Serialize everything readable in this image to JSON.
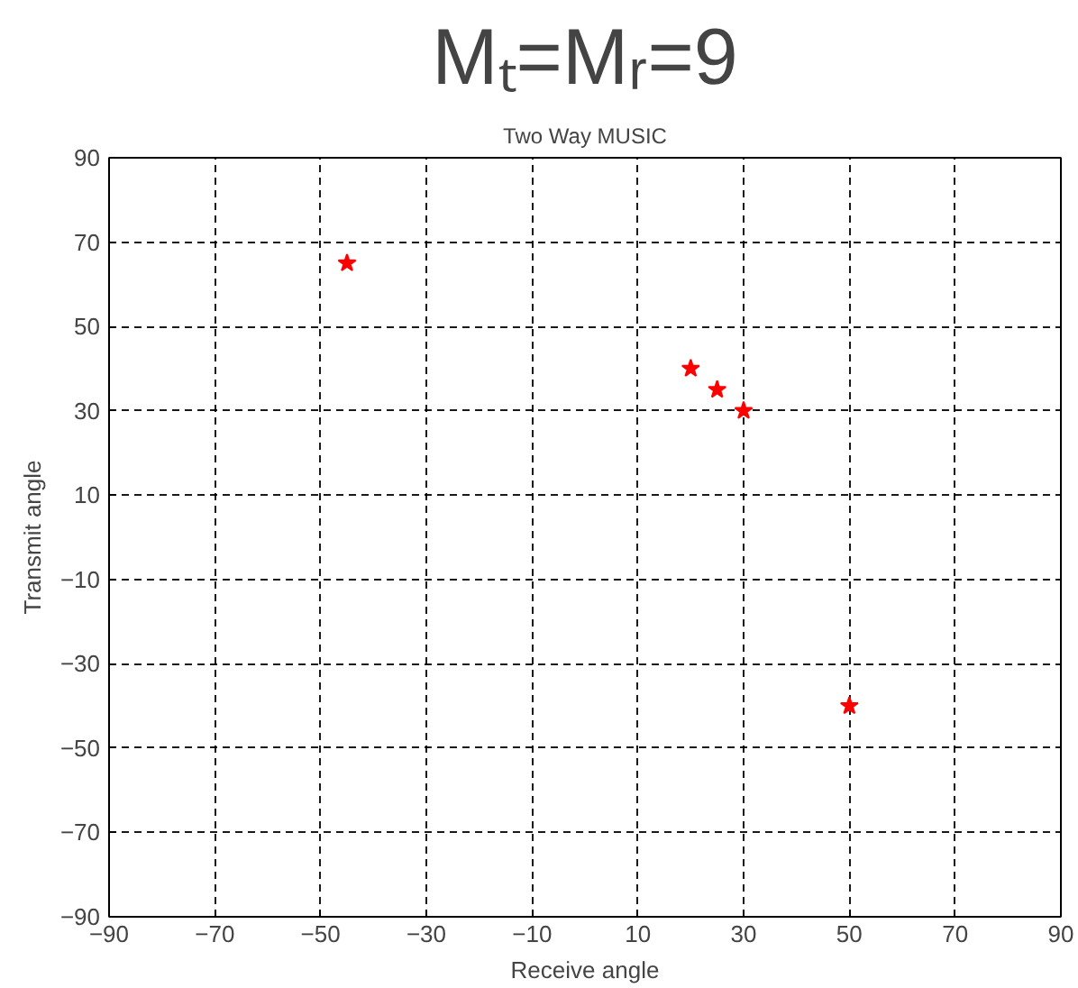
{
  "chart_data": {
    "type": "scatter",
    "title": "Mₜ=Mᵣ=9",
    "subtitle": "Two Way MUSIC",
    "xlabel": "Receive angle",
    "ylabel": "Transmit angle",
    "x": [
      -45,
      20,
      25,
      30,
      50
    ],
    "series": [
      {
        "color": "#ff0000",
        "values": [
          65,
          40,
          35,
          30,
          -40
        ]
      }
    ],
    "xlim": [
      -90,
      90
    ],
    "ylim": [
      -90,
      90
    ],
    "xticks": [
      -90,
      -70,
      -50,
      -30,
      -10,
      10,
      30,
      50,
      70,
      90
    ],
    "yticks": [
      -90,
      -70,
      -50,
      -30,
      -10,
      10,
      30,
      50,
      70,
      90
    ],
    "grid": true,
    "marker": "star",
    "line_style": "dashed"
  }
}
